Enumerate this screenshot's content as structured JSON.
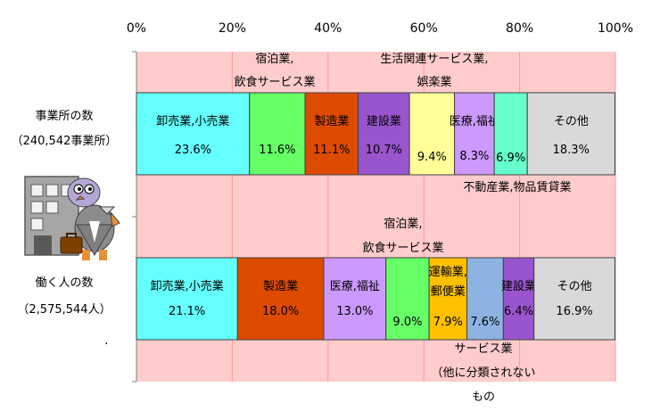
{
  "chart_data": {
    "type": "bar",
    "stacked": true,
    "orientation": "horizontal",
    "percent_axis": true,
    "xlim": [
      0,
      100
    ],
    "x_ticks": [
      "0%",
      "20%",
      "40%",
      "60%",
      "80%",
      "100%"
    ],
    "grid": true,
    "rows": [
      {
        "label_lines": [
          "事業所の数",
          "（240,542事業所）"
        ],
        "segments": [
          {
            "name": "卸売業,小売業",
            "value": 23.6,
            "value_label": "23.6%",
            "color": "#66ffff"
          },
          {
            "name": "宿泊業,飲食サービス業",
            "value": 11.6,
            "value_label": "11.6%",
            "color": "#66ff66"
          },
          {
            "name": "製造業",
            "value": 11.1,
            "value_label": "11.1%",
            "color": "#dd4b00"
          },
          {
            "name": "建設業",
            "value": 10.7,
            "value_label": "10.7%",
            "color": "#9955cc"
          },
          {
            "name": "生活関連サービス業,娯楽業",
            "value": 9.4,
            "value_label": "9.4%",
            "color": "#ffff99"
          },
          {
            "name": "医療,福祉",
            "value": 8.3,
            "value_label": "8.3%",
            "color": "#cc99ff"
          },
          {
            "name": "不動産業,物品賃貸業",
            "value": 6.9,
            "value_label": "6.9%",
            "color": "#66ffcc"
          },
          {
            "name": "その他",
            "value": 18.3,
            "value_label": "18.3%",
            "color": "#d9d9d9"
          }
        ]
      },
      {
        "label_lines": [
          "働く人の数",
          "（2,575,544人）"
        ],
        "segments": [
          {
            "name": "卸売業,小売業",
            "value": 21.1,
            "value_label": "21.1%",
            "color": "#66ffff"
          },
          {
            "name": "製造業",
            "value": 18.0,
            "value_label": "18.0%",
            "color": "#dd4b00"
          },
          {
            "name": "医療,福祉",
            "value": 13.0,
            "value_label": "13.0%",
            "color": "#cc99ff"
          },
          {
            "name": "宿泊業,飲食サービス業",
            "value": 9.0,
            "value_label": "9.0%",
            "color": "#66ff66"
          },
          {
            "name": "運輸業,郵便業",
            "value": 7.9,
            "value_label": "7.9%",
            "color": "#ffc000"
          },
          {
            "name": "サービス業（他に分類されないもの）",
            "value": 7.6,
            "value_label": "7.6%",
            "color": "#8db3e2"
          },
          {
            "name": "建設業",
            "value": 6.4,
            "value_label": "6.4%",
            "color": "#9955cc"
          },
          {
            "name": "その他",
            "value": 16.9,
            "value_label": "16.9%",
            "color": "#d9d9d9"
          }
        ]
      }
    ],
    "annotations": [
      {
        "lines": [
          "宿泊業,",
          "飲食サービス業"
        ]
      },
      {
        "lines": [
          "生活関連サービス業,",
          "娯楽業"
        ]
      },
      {
        "lines": [
          "不動産業,物品賃貸業"
        ]
      },
      {
        "lines": [
          "宿泊業,",
          "飲食サービス業"
        ]
      },
      {
        "lines": [
          "サービス業",
          "（他に分類されない",
          "もの"
        ]
      }
    ],
    "colors": {
      "plot_background": "#ffcccc",
      "grid": "#ff9999"
    }
  },
  "illustration": {
    "name": "pigeon-businessman-with-building"
  }
}
